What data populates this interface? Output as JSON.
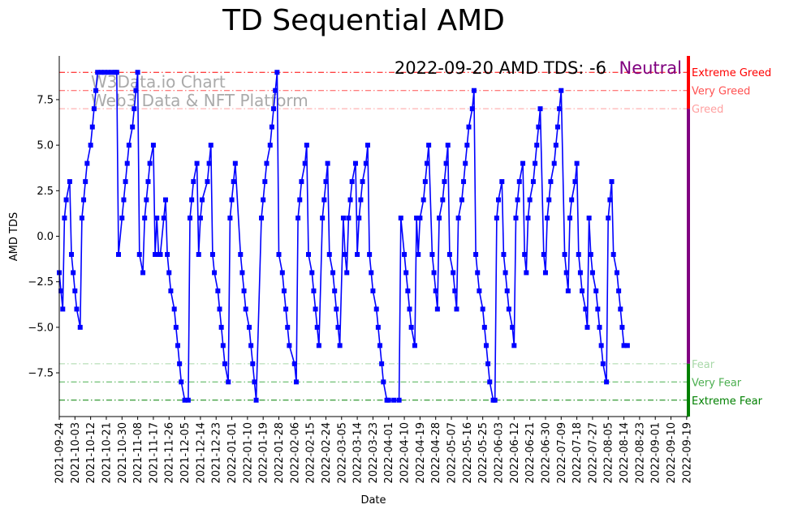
{
  "chart_data": {
    "type": "line",
    "title": "TD Sequential AMD",
    "xlabel": "Date",
    "ylabel": "AMD TDS",
    "ylim": [
      -9.9,
      9.9
    ],
    "annotation": "2022-09-20 AMD TDS: -6",
    "sentiment": "Neutral",
    "watermark": [
      "W3Data.io Chart",
      "Web3 Data & NFT Platform"
    ],
    "x_start": "2021-09-24",
    "x_end": "2022-09-20",
    "x_ticks": [
      "2021-09-24",
      "2021-10-03",
      "2021-10-12",
      "2021-10-21",
      "2021-10-30",
      "2021-11-08",
      "2021-11-17",
      "2021-11-26",
      "2021-12-05",
      "2021-12-14",
      "2021-12-23",
      "2022-01-01",
      "2022-01-10",
      "2022-01-19",
      "2022-01-28",
      "2022-02-06",
      "2022-02-15",
      "2022-02-24",
      "2022-03-05",
      "2022-03-14",
      "2022-03-23",
      "2022-04-01",
      "2022-04-10",
      "2022-04-19",
      "2022-04-28",
      "2022-05-07",
      "2022-05-16",
      "2022-05-25",
      "2022-06-03",
      "2022-06-12",
      "2022-06-21",
      "2022-06-30",
      "2022-07-09",
      "2022-07-18",
      "2022-07-27",
      "2022-08-05",
      "2022-08-14",
      "2022-08-23",
      "2022-09-01",
      "2022-09-10",
      "2022-09-19"
    ],
    "y_ticks": [
      -7.5,
      -5.0,
      -2.5,
      0.0,
      2.5,
      5.0,
      7.5
    ],
    "y_tick_labels": [
      "−7.5",
      "−5.0",
      "−2.5",
      "0.0",
      "2.5",
      "5.0",
      "7.5"
    ],
    "levels": [
      {
        "name": "Extreme Greed",
        "value": 9,
        "color": "#ff0000"
      },
      {
        "name": "Very Greed",
        "value": 8,
        "color": "#ff5252"
      },
      {
        "name": "Greed",
        "value": 7,
        "color": "#ffa0a0"
      },
      {
        "name": "Fear",
        "value": -7,
        "color": "#a8d8a8"
      },
      {
        "name": "Very Fear",
        "value": -8,
        "color": "#4caf50"
      },
      {
        "name": "Extreme Fear",
        "value": -9,
        "color": "#008000"
      }
    ],
    "side_bar": [
      {
        "from": 7,
        "to": 9.9,
        "color": "#ff0000"
      },
      {
        "from": -7,
        "to": 7,
        "color": "#800080"
      },
      {
        "from": -9.9,
        "to": -7,
        "color": "#008000"
      }
    ],
    "series": [
      {
        "name": "AMD TDS",
        "color": "#0000ff",
        "points": [
          [
            "2021-09-24",
            -2
          ],
          [
            "2021-09-25",
            -3
          ],
          [
            "2021-09-26",
            -4
          ],
          [
            "2021-09-27",
            1
          ],
          [
            "2021-09-28",
            2
          ],
          [
            "2021-09-30",
            3
          ],
          [
            "2021-10-01",
            -1
          ],
          [
            "2021-10-02",
            -2
          ],
          [
            "2021-10-03",
            -3
          ],
          [
            "2021-10-04",
            -4
          ],
          [
            "2021-10-06",
            -5
          ],
          [
            "2021-10-07",
            1
          ],
          [
            "2021-10-08",
            2
          ],
          [
            "2021-10-09",
            3
          ],
          [
            "2021-10-10",
            4
          ],
          [
            "2021-10-12",
            5
          ],
          [
            "2021-10-13",
            6
          ],
          [
            "2021-10-14",
            7
          ],
          [
            "2021-10-15",
            8
          ],
          [
            "2021-10-16",
            9
          ],
          [
            "2021-10-18",
            9
          ],
          [
            "2021-10-20",
            9
          ],
          [
            "2021-10-22",
            9
          ],
          [
            "2021-10-24",
            9
          ],
          [
            "2021-10-26",
            9
          ],
          [
            "2021-10-27",
            9
          ],
          [
            "2021-10-28",
            -1
          ],
          [
            "2021-10-30",
            1
          ],
          [
            "2021-10-31",
            2
          ],
          [
            "2021-11-01",
            3
          ],
          [
            "2021-11-02",
            4
          ],
          [
            "2021-11-03",
            5
          ],
          [
            "2021-11-05",
            6
          ],
          [
            "2021-11-06",
            7
          ],
          [
            "2021-11-07",
            8
          ],
          [
            "2021-11-08",
            9
          ],
          [
            "2021-11-09",
            -1
          ],
          [
            "2021-11-11",
            -2
          ],
          [
            "2021-11-12",
            1
          ],
          [
            "2021-11-13",
            2
          ],
          [
            "2021-11-14",
            3
          ],
          [
            "2021-11-15",
            4
          ],
          [
            "2021-11-17",
            5
          ],
          [
            "2021-11-18",
            -1
          ],
          [
            "2021-11-19",
            1
          ],
          [
            "2021-11-20",
            -1
          ],
          [
            "2021-11-21",
            -1
          ],
          [
            "2021-11-23",
            1
          ],
          [
            "2021-11-24",
            2
          ],
          [
            "2021-11-25",
            -1
          ],
          [
            "2021-11-26",
            -2
          ],
          [
            "2021-11-27",
            -3
          ],
          [
            "2021-11-29",
            -4
          ],
          [
            "2021-11-30",
            -5
          ],
          [
            "2021-12-01",
            -6
          ],
          [
            "2021-12-02",
            -7
          ],
          [
            "2021-12-03",
            -8
          ],
          [
            "2021-12-05",
            -9
          ],
          [
            "2021-12-07",
            -9
          ],
          [
            "2021-12-08",
            1
          ],
          [
            "2021-12-09",
            2
          ],
          [
            "2021-12-10",
            3
          ],
          [
            "2021-12-12",
            4
          ],
          [
            "2021-12-13",
            -1
          ],
          [
            "2021-12-14",
            1
          ],
          [
            "2021-12-15",
            2
          ],
          [
            "2021-12-18",
            3
          ],
          [
            "2021-12-19",
            4
          ],
          [
            "2021-12-20",
            5
          ],
          [
            "2021-12-21",
            -1
          ],
          [
            "2021-12-22",
            -2
          ],
          [
            "2021-12-24",
            -3
          ],
          [
            "2021-12-25",
            -4
          ],
          [
            "2021-12-26",
            -5
          ],
          [
            "2021-12-27",
            -6
          ],
          [
            "2021-12-28",
            -7
          ],
          [
            "2021-12-30",
            -8
          ],
          [
            "2021-12-31",
            1
          ],
          [
            "2022-01-01",
            2
          ],
          [
            "2022-01-02",
            3
          ],
          [
            "2022-01-03",
            4
          ],
          [
            "2022-01-06",
            -1
          ],
          [
            "2022-01-07",
            -2
          ],
          [
            "2022-01-08",
            -3
          ],
          [
            "2022-01-09",
            -4
          ],
          [
            "2022-01-11",
            -5
          ],
          [
            "2022-01-12",
            -6
          ],
          [
            "2022-01-13",
            -7
          ],
          [
            "2022-01-14",
            -8
          ],
          [
            "2022-01-15",
            -9
          ],
          [
            "2022-01-18",
            1
          ],
          [
            "2022-01-19",
            2
          ],
          [
            "2022-01-20",
            3
          ],
          [
            "2022-01-21",
            4
          ],
          [
            "2022-01-23",
            5
          ],
          [
            "2022-01-24",
            6
          ],
          [
            "2022-01-25",
            7
          ],
          [
            "2022-01-26",
            8
          ],
          [
            "2022-01-27",
            9
          ],
          [
            "2022-01-28",
            -1
          ],
          [
            "2022-01-30",
            -2
          ],
          [
            "2022-01-31",
            -3
          ],
          [
            "2022-02-01",
            -4
          ],
          [
            "2022-02-02",
            -5
          ],
          [
            "2022-02-03",
            -6
          ],
          [
            "2022-02-06",
            -7
          ],
          [
            "2022-02-07",
            -8
          ],
          [
            "2022-02-08",
            1
          ],
          [
            "2022-02-09",
            2
          ],
          [
            "2022-02-10",
            3
          ],
          [
            "2022-02-12",
            4
          ],
          [
            "2022-02-13",
            5
          ],
          [
            "2022-02-14",
            -1
          ],
          [
            "2022-02-16",
            -2
          ],
          [
            "2022-02-17",
            -3
          ],
          [
            "2022-02-18",
            -4
          ],
          [
            "2022-02-19",
            -5
          ],
          [
            "2022-02-20",
            -6
          ],
          [
            "2022-02-22",
            1
          ],
          [
            "2022-02-23",
            2
          ],
          [
            "2022-02-24",
            3
          ],
          [
            "2022-02-25",
            4
          ],
          [
            "2022-02-26",
            -1
          ],
          [
            "2022-02-28",
            -2
          ],
          [
            "2022-03-01",
            -3
          ],
          [
            "2022-03-02",
            -4
          ],
          [
            "2022-03-03",
            -5
          ],
          [
            "2022-03-04",
            -6
          ],
          [
            "2022-03-06",
            1
          ],
          [
            "2022-03-07",
            -1
          ],
          [
            "2022-03-08",
            -2
          ],
          [
            "2022-03-09",
            1
          ],
          [
            "2022-03-10",
            2
          ],
          [
            "2022-03-11",
            3
          ],
          [
            "2022-03-13",
            4
          ],
          [
            "2022-03-14",
            -1
          ],
          [
            "2022-03-15",
            1
          ],
          [
            "2022-03-16",
            2
          ],
          [
            "2022-03-17",
            3
          ],
          [
            "2022-03-19",
            4
          ],
          [
            "2022-03-20",
            5
          ],
          [
            "2022-03-21",
            -1
          ],
          [
            "2022-03-22",
            -2
          ],
          [
            "2022-03-23",
            -3
          ],
          [
            "2022-03-25",
            -4
          ],
          [
            "2022-03-26",
            -5
          ],
          [
            "2022-03-27",
            -6
          ],
          [
            "2022-03-28",
            -7
          ],
          [
            "2022-03-29",
            -8
          ],
          [
            "2022-03-31",
            -9
          ],
          [
            "2022-04-01",
            -9
          ],
          [
            "2022-04-04",
            -9
          ],
          [
            "2022-04-07",
            -9
          ],
          [
            "2022-04-08",
            1
          ],
          [
            "2022-04-10",
            -1
          ],
          [
            "2022-04-11",
            -2
          ],
          [
            "2022-04-12",
            -3
          ],
          [
            "2022-04-13",
            -4
          ],
          [
            "2022-04-14",
            -5
          ],
          [
            "2022-04-16",
            -6
          ],
          [
            "2022-04-17",
            1
          ],
          [
            "2022-04-18",
            -1
          ],
          [
            "2022-04-19",
            1
          ],
          [
            "2022-04-21",
            2
          ],
          [
            "2022-04-22",
            3
          ],
          [
            "2022-04-23",
            4
          ],
          [
            "2022-04-24",
            5
          ],
          [
            "2022-04-26",
            -1
          ],
          [
            "2022-04-27",
            -2
          ],
          [
            "2022-04-28",
            -3
          ],
          [
            "2022-04-29",
            -4
          ],
          [
            "2022-04-30",
            1
          ],
          [
            "2022-05-02",
            2
          ],
          [
            "2022-05-03",
            3
          ],
          [
            "2022-05-04",
            4
          ],
          [
            "2022-05-05",
            5
          ],
          [
            "2022-05-06",
            -1
          ],
          [
            "2022-05-08",
            -2
          ],
          [
            "2022-05-09",
            -3
          ],
          [
            "2022-05-10",
            -4
          ],
          [
            "2022-05-11",
            1
          ],
          [
            "2022-05-13",
            2
          ],
          [
            "2022-05-14",
            3
          ],
          [
            "2022-05-15",
            4
          ],
          [
            "2022-05-16",
            5
          ],
          [
            "2022-05-17",
            6
          ],
          [
            "2022-05-19",
            7
          ],
          [
            "2022-05-20",
            8
          ],
          [
            "2022-05-21",
            -1
          ],
          [
            "2022-05-22",
            -2
          ],
          [
            "2022-05-23",
            -3
          ],
          [
            "2022-05-25",
            -4
          ],
          [
            "2022-05-26",
            -5
          ],
          [
            "2022-05-27",
            -6
          ],
          [
            "2022-05-28",
            -7
          ],
          [
            "2022-05-29",
            -8
          ],
          [
            "2022-05-31",
            -9
          ],
          [
            "2022-06-01",
            -9
          ],
          [
            "2022-06-02",
            1
          ],
          [
            "2022-06-03",
            2
          ],
          [
            "2022-06-05",
            3
          ],
          [
            "2022-06-06",
            -1
          ],
          [
            "2022-06-07",
            -2
          ],
          [
            "2022-06-08",
            -3
          ],
          [
            "2022-06-09",
            -4
          ],
          [
            "2022-06-11",
            -5
          ],
          [
            "2022-06-12",
            -6
          ],
          [
            "2022-06-13",
            1
          ],
          [
            "2022-06-14",
            2
          ],
          [
            "2022-06-15",
            3
          ],
          [
            "2022-06-17",
            4
          ],
          [
            "2022-06-18",
            -1
          ],
          [
            "2022-06-19",
            -2
          ],
          [
            "2022-06-20",
            1
          ],
          [
            "2022-06-21",
            2
          ],
          [
            "2022-06-23",
            3
          ],
          [
            "2022-06-24",
            4
          ],
          [
            "2022-06-25",
            5
          ],
          [
            "2022-06-26",
            6
          ],
          [
            "2022-06-27",
            7
          ],
          [
            "2022-06-29",
            -1
          ],
          [
            "2022-06-30",
            -2
          ],
          [
            "2022-07-01",
            1
          ],
          [
            "2022-07-02",
            2
          ],
          [
            "2022-07-03",
            3
          ],
          [
            "2022-07-05",
            4
          ],
          [
            "2022-07-06",
            5
          ],
          [
            "2022-07-07",
            6
          ],
          [
            "2022-07-08",
            7
          ],
          [
            "2022-07-09",
            8
          ],
          [
            "2022-07-11",
            -1
          ],
          [
            "2022-07-12",
            -2
          ],
          [
            "2022-07-13",
            -3
          ],
          [
            "2022-07-14",
            1
          ],
          [
            "2022-07-15",
            2
          ],
          [
            "2022-07-17",
            3
          ],
          [
            "2022-07-18",
            4
          ],
          [
            "2022-07-19",
            -1
          ],
          [
            "2022-07-20",
            -2
          ],
          [
            "2022-07-21",
            -3
          ],
          [
            "2022-07-23",
            -4
          ],
          [
            "2022-07-24",
            -5
          ],
          [
            "2022-07-25",
            1
          ],
          [
            "2022-07-26",
            -1
          ],
          [
            "2022-07-27",
            -2
          ],
          [
            "2022-07-29",
            -3
          ],
          [
            "2022-07-30",
            -4
          ],
          [
            "2022-07-31",
            -5
          ],
          [
            "2022-08-01",
            -6
          ],
          [
            "2022-08-02",
            -7
          ],
          [
            "2022-08-04",
            -8
          ],
          [
            "2022-08-05",
            1
          ],
          [
            "2022-08-06",
            2
          ],
          [
            "2022-08-07",
            3
          ],
          [
            "2022-08-08",
            -1
          ],
          [
            "2022-08-10",
            -2
          ],
          [
            "2022-08-11",
            -3
          ],
          [
            "2022-08-12",
            -4
          ],
          [
            "2022-08-13",
            -5
          ],
          [
            "2022-08-14",
            -6
          ],
          [
            "2022-08-16",
            -6
          ]
        ]
      }
    ]
  }
}
